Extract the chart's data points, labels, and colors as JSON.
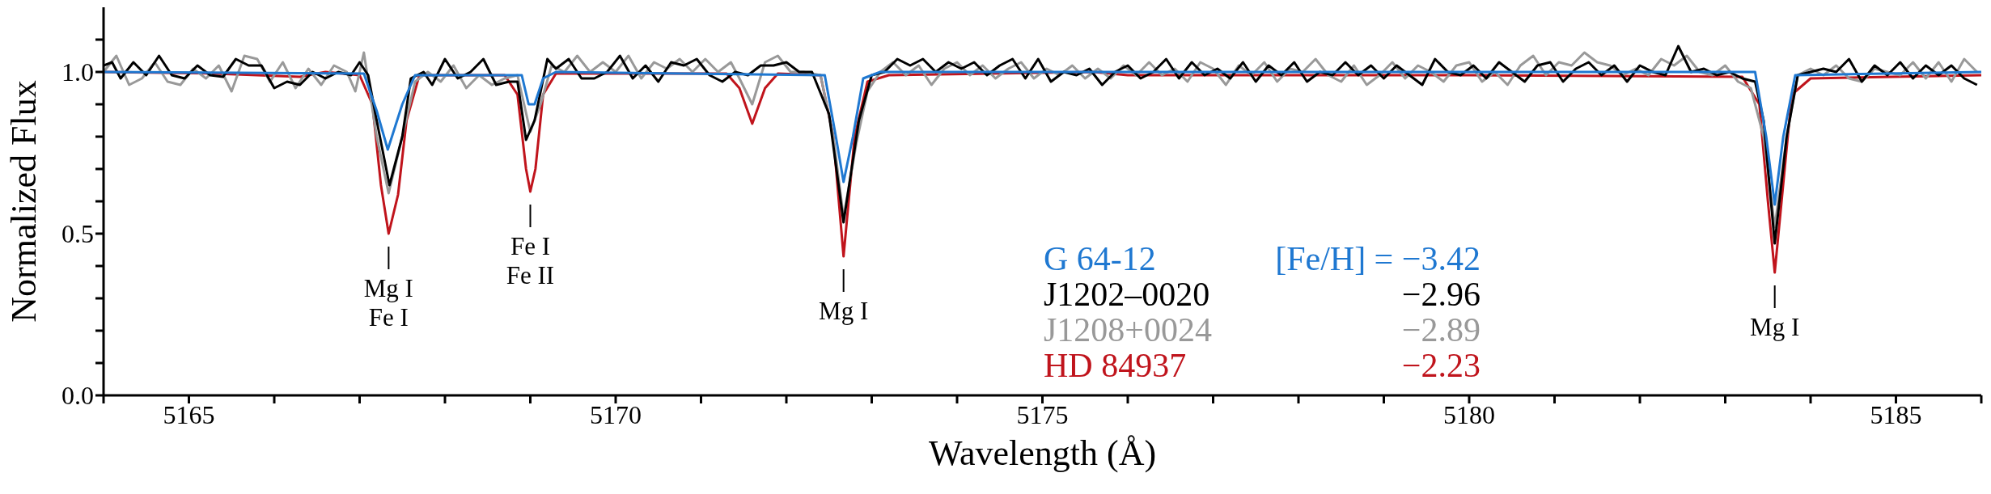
{
  "chart_data": {
    "type": "line",
    "xlabel": "Wavelength (Å)",
    "ylabel": "Normalized Flux",
    "xlim": [
      5164,
      5186
    ],
    "ylim": [
      0,
      1.2
    ],
    "xticks": [
      {
        "value": 5164,
        "label": null
      },
      5165,
      {
        "value": 5166,
        "label": null
      },
      {
        "value": 5167,
        "label": null
      },
      {
        "value": 5168,
        "label": null
      },
      {
        "value": 5169,
        "label": null
      },
      5170,
      {
        "value": 5171,
        "label": null
      },
      {
        "value": 5172,
        "label": null
      },
      {
        "value": 5173,
        "label": null
      },
      {
        "value": 5174,
        "label": null
      },
      5175,
      {
        "value": 5176,
        "label": null
      },
      {
        "value": 5177,
        "label": null
      },
      {
        "value": 5178,
        "label": null
      },
      {
        "value": 5179,
        "label": null
      },
      5180,
      {
        "value": 5181,
        "label": null
      },
      {
        "value": 5182,
        "label": null
      },
      {
        "value": 5183,
        "label": null
      },
      {
        "value": 5184,
        "label": null
      },
      5185,
      {
        "value": 5186,
        "label": null
      }
    ],
    "yticks": [
      {
        "value": 0,
        "label": "0.0"
      },
      {
        "value": 0.1,
        "label": null
      },
      {
        "value": 0.2,
        "label": null
      },
      {
        "value": 0.3,
        "label": null
      },
      {
        "value": 0.4,
        "label": null
      },
      {
        "value": 0.5,
        "label": "0.5"
      },
      {
        "value": 0.6,
        "label": null
      },
      {
        "value": 0.7,
        "label": null
      },
      {
        "value": 0.8,
        "label": null
      },
      {
        "value": 0.9,
        "label": null
      },
      {
        "value": 1,
        "label": "1.0"
      },
      {
        "value": 1.1,
        "label": null
      }
    ],
    "grid": false,
    "legend": "bottom",
    "marker": "none",
    "line_style": "solid",
    "annotations": [
      {
        "text": "Mg I\nFe I",
        "x": 5167.34,
        "y": 0.5
      },
      {
        "text": "Fe I\nFe II",
        "x": 5169.0,
        "y": 0.63
      },
      {
        "text": "Mg I",
        "x": 5172.67,
        "y": 0.43
      },
      {
        "text": "Mg I",
        "x": 5183.58,
        "y": 0.38
      },
      "[Fe/H] = −3.42",
      "−2.96",
      "−2.89",
      "−2.23"
    ],
    "series": [
      {
        "name": "G 64-12",
        "color": "#1f78d1",
        "x": [
          5164,
          5167.05,
          5167.2,
          5167.33,
          5167.5,
          5167.65,
          5168.9,
          5168.98,
          5169.05,
          5169.15,
          5169.3,
          5172.45,
          5172.58,
          5172.67,
          5172.78,
          5172.9,
          5173.1,
          5183.35,
          5183.48,
          5183.58,
          5183.68,
          5183.82,
          5186
        ],
        "values": [
          1.0,
          0.995,
          0.88,
          0.76,
          0.9,
          0.99,
          0.99,
          0.9,
          0.9,
          0.98,
          1.0,
          0.99,
          0.8,
          0.66,
          0.8,
          0.98,
          1.0,
          1.0,
          0.8,
          0.59,
          0.8,
          0.99,
          1.0
        ]
      },
      {
        "name": "J1202–0020",
        "color": "#000000",
        "x": [
          5164.0,
          5164.1,
          5164.2,
          5164.35,
          5164.5,
          5164.65,
          5164.8,
          5164.95,
          5165.1,
          5165.25,
          5165.4,
          5165.55,
          5165.7,
          5165.85,
          5166.0,
          5166.15,
          5166.3,
          5166.45,
          5166.6,
          5166.75,
          5166.9,
          5167.0,
          5167.1,
          5167.2,
          5167.35,
          5167.5,
          5167.6,
          5167.75,
          5167.85,
          5168.0,
          5168.15,
          5168.3,
          5168.45,
          5168.6,
          5168.75,
          5168.85,
          5168.95,
          5169.05,
          5169.2,
          5169.3,
          5169.45,
          5169.6,
          5169.75,
          5169.9,
          5170.05,
          5170.2,
          5170.35,
          5170.5,
          5170.65,
          5170.8,
          5170.95,
          5171.1,
          5171.25,
          5171.4,
          5171.55,
          5171.7,
          5171.85,
          5172.0,
          5172.15,
          5172.3,
          5172.5,
          5172.67,
          5172.85,
          5173.0,
          5173.15,
          5173.3,
          5173.45,
          5173.6,
          5173.75,
          5173.9,
          5174.05,
          5174.2,
          5174.35,
          5174.5,
          5174.65,
          5174.8,
          5174.95,
          5175.1,
          5175.25,
          5175.4,
          5175.55,
          5175.7,
          5175.85,
          5176.0,
          5176.15,
          5176.3,
          5176.45,
          5176.6,
          5176.75,
          5176.9,
          5177.05,
          5177.2,
          5177.35,
          5177.5,
          5177.65,
          5177.8,
          5177.95,
          5178.1,
          5178.25,
          5178.4,
          5178.55,
          5178.7,
          5178.85,
          5179.0,
          5179.15,
          5179.3,
          5179.45,
          5179.6,
          5179.75,
          5179.9,
          5180.05,
          5180.2,
          5180.35,
          5180.5,
          5180.65,
          5180.8,
          5180.95,
          5181.1,
          5181.25,
          5181.4,
          5181.55,
          5181.7,
          5181.85,
          5182.0,
          5182.15,
          5182.3,
          5182.45,
          5182.6,
          5182.75,
          5182.9,
          5183.05,
          5183.2,
          5183.35,
          5183.45,
          5183.58,
          5183.72,
          5183.85,
          5184.0,
          5184.15,
          5184.3,
          5184.45,
          5184.6,
          5184.75,
          5184.9,
          5185.05,
          5185.2,
          5185.35,
          5185.5,
          5185.65,
          5185.8,
          5185.95
        ],
        "values": [
          1.02,
          1.03,
          0.98,
          1.03,
          0.99,
          1.05,
          0.99,
          0.98,
          1.02,
          0.99,
          0.985,
          1.04,
          1.02,
          1.02,
          0.95,
          0.97,
          0.96,
          1.0,
          0.98,
          1.0,
          0.99,
          1.03,
          0.99,
          0.85,
          0.65,
          0.8,
          0.98,
          1.0,
          0.96,
          1.04,
          0.98,
          1.0,
          1.04,
          0.96,
          0.97,
          0.97,
          0.79,
          0.85,
          1.04,
          1.01,
          1.04,
          0.98,
          0.98,
          1.0,
          1.05,
          0.98,
          1.02,
          0.97,
          1.03,
          1.02,
          1.04,
          0.99,
          0.97,
          1.0,
          0.99,
          1.02,
          1.02,
          1.03,
          1.0,
          1.0,
          0.87,
          0.535,
          0.85,
          0.99,
          1.0,
          1.04,
          1.02,
          1.04,
          1.0,
          1.03,
          1.01,
          1.03,
          0.99,
          1.02,
          1.04,
          0.98,
          1.04,
          0.97,
          1.0,
          0.99,
          1.01,
          0.96,
          1.0,
          1.02,
          0.98,
          1.0,
          1.04,
          0.98,
          1.03,
          0.99,
          1.01,
          0.98,
          1.03,
          0.97,
          1.02,
          0.99,
          1.03,
          0.97,
          1.0,
          0.99,
          1.03,
          0.99,
          1.02,
          0.98,
          1.02,
          0.99,
          0.96,
          1.04,
          1.0,
          0.99,
          1.02,
          0.98,
          1.03,
          1.0,
          0.97,
          1.02,
          1.03,
          0.97,
          1.01,
          1.03,
          0.99,
          1.02,
          0.97,
          1.02,
          1.0,
          0.99,
          1.08,
          1.0,
          1.01,
          0.99,
          1.0,
          0.98,
          0.97,
          0.85,
          0.47,
          0.8,
          0.99,
          1.0,
          1.01,
          1.0,
          1.04,
          0.97,
          1.02,
          0.99,
          1.03,
          0.98,
          1.02,
          0.99,
          1.02,
          0.98,
          0.96
        ]
      },
      {
        "name": "J1208+0024",
        "color": "#999999",
        "x": [
          5164.0,
          5164.15,
          5164.3,
          5164.45,
          5164.6,
          5164.75,
          5164.9,
          5165.05,
          5165.2,
          5165.35,
          5165.5,
          5165.65,
          5165.8,
          5165.95,
          5166.1,
          5166.25,
          5166.4,
          5166.55,
          5166.7,
          5166.85,
          5166.95,
          5167.05,
          5167.2,
          5167.34,
          5167.5,
          5167.65,
          5167.8,
          5167.95,
          5168.1,
          5168.25,
          5168.4,
          5168.55,
          5168.7,
          5168.85,
          5169.0,
          5169.12,
          5169.25,
          5169.4,
          5169.55,
          5169.7,
          5169.85,
          5170.0,
          5170.15,
          5170.3,
          5170.45,
          5170.6,
          5170.75,
          5170.9,
          5171.05,
          5171.2,
          5171.35,
          5171.45,
          5171.6,
          5171.75,
          5171.9,
          5172.05,
          5172.2,
          5172.4,
          5172.55,
          5172.67,
          5172.82,
          5172.95,
          5173.1,
          5173.25,
          5173.4,
          5173.55,
          5173.7,
          5173.85,
          5174.0,
          5174.15,
          5174.3,
          5174.45,
          5174.6,
          5174.75,
          5174.9,
          5175.05,
          5175.2,
          5175.35,
          5175.5,
          5175.65,
          5175.8,
          5175.95,
          5176.1,
          5176.25,
          5176.4,
          5176.55,
          5176.7,
          5176.85,
          5177.0,
          5177.15,
          5177.3,
          5177.45,
          5177.6,
          5177.75,
          5177.9,
          5178.05,
          5178.2,
          5178.35,
          5178.5,
          5178.65,
          5178.8,
          5178.95,
          5179.1,
          5179.25,
          5179.4,
          5179.55,
          5179.7,
          5179.85,
          5180.0,
          5180.15,
          5180.3,
          5180.45,
          5180.6,
          5180.75,
          5180.9,
          5181.05,
          5181.2,
          5181.35,
          5181.5,
          5181.65,
          5181.8,
          5181.95,
          5182.1,
          5182.25,
          5182.4,
          5182.55,
          5182.7,
          5182.85,
          5183.0,
          5183.15,
          5183.3,
          5183.45,
          5183.58,
          5183.72,
          5183.85,
          5184.0,
          5184.15,
          5184.3,
          5184.45,
          5184.6,
          5184.75,
          5184.9,
          5185.05,
          5185.2,
          5185.35,
          5185.5,
          5185.65,
          5185.8,
          5185.95
        ],
        "values": [
          1.0,
          1.05,
          0.96,
          0.98,
          1.03,
          0.97,
          0.96,
          1.01,
          0.98,
          1.02,
          0.94,
          1.05,
          1.04,
          0.97,
          1.03,
          0.95,
          1.01,
          0.96,
          1.02,
          1.0,
          0.94,
          1.06,
          0.8,
          0.625,
          0.8,
          0.97,
          1.0,
          0.97,
          1.02,
          0.95,
          0.99,
          0.96,
          0.98,
          0.99,
          0.815,
          0.9,
          1.02,
          1.0,
          1.05,
          1.0,
          1.03,
          1.0,
          1.05,
          0.98,
          1.03,
          1.01,
          1.04,
          1.0,
          1.04,
          1.0,
          1.03,
          0.98,
          0.9,
          1.03,
          1.05,
          1.0,
          1.0,
          0.99,
          0.8,
          0.55,
          0.78,
          0.94,
          1.0,
          1.03,
          0.99,
          1.02,
          0.96,
          1.01,
          1.03,
          0.99,
          1.02,
          0.98,
          1.01,
          1.03,
          0.98,
          1.01,
          0.99,
          1.02,
          0.98,
          1.01,
          0.98,
          1.02,
          0.99,
          1.03,
          0.99,
          1.01,
          0.97,
          1.03,
          1.01,
          0.96,
          1.02,
          0.99,
          1.03,
          0.97,
          1.01,
          1.0,
          1.04,
          0.99,
          0.97,
          1.02,
          0.96,
          0.99,
          1.03,
          0.98,
          1.02,
          1.0,
          0.97,
          1.02,
          1.03,
          0.97,
          1.0,
          0.96,
          1.02,
          1.05,
          0.99,
          1.03,
          1.02,
          1.06,
          1.03,
          1.02,
          0.99,
          1.01,
          0.99,
          1.04,
          1.02,
          1.05,
          1.0,
          0.99,
          1.02,
          0.97,
          0.95,
          0.8,
          0.52,
          0.8,
          0.99,
          1.01,
          0.99,
          1.02,
          0.98,
          0.97,
          1.01,
          1.0,
          0.99,
          1.03,
          0.98,
          1.03,
          0.97,
          1.04,
          1.0
        ]
      },
      {
        "name": "HD 84937",
        "color": "#c0141c",
        "x": [
          5164,
          5165.3,
          5166.3,
          5166.6,
          5167.0,
          5167.15,
          5167.25,
          5167.34,
          5167.45,
          5167.55,
          5167.7,
          5168.7,
          5168.85,
          5168.95,
          5169.0,
          5169.06,
          5169.15,
          5169.3,
          5171.3,
          5171.45,
          5171.6,
          5171.75,
          5171.9,
          5172.4,
          5172.55,
          5172.67,
          5172.8,
          5172.95,
          5173.2,
          5175.6,
          5176.0,
          5180,
          5183.2,
          5183.4,
          5183.5,
          5183.58,
          5183.66,
          5183.78,
          5184.0,
          5186
        ],
        "values": [
          1.0,
          0.995,
          0.985,
          1.0,
          0.99,
          0.9,
          0.65,
          0.5,
          0.62,
          0.85,
          0.99,
          0.99,
          0.93,
          0.7,
          0.63,
          0.7,
          0.93,
          0.995,
          0.995,
          0.95,
          0.84,
          0.95,
          0.995,
          0.99,
          0.8,
          0.43,
          0.8,
          0.97,
          0.99,
          1.0,
          0.99,
          0.99,
          0.985,
          0.9,
          0.6,
          0.38,
          0.6,
          0.93,
          0.98,
          0.99
        ]
      }
    ]
  }
}
